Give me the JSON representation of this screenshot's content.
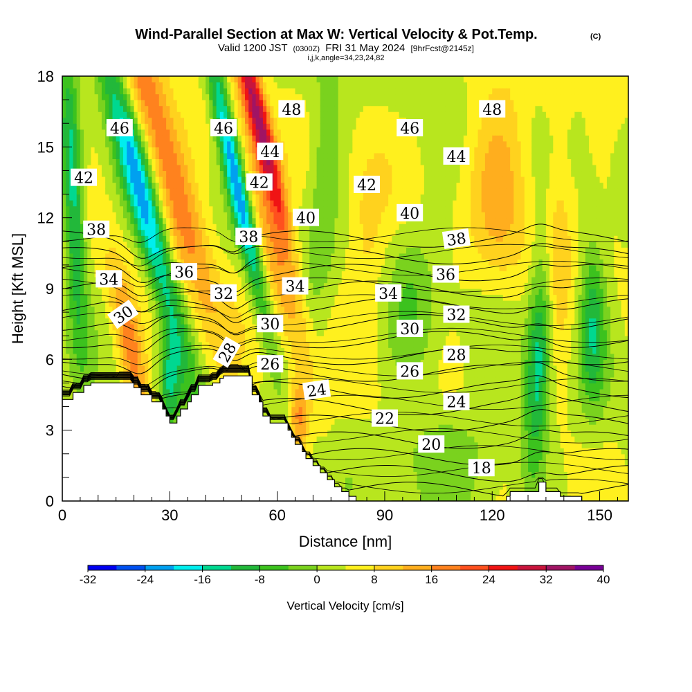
{
  "chart_data": {
    "type": "heatmap",
    "title": "Wind-Parallel Section at Max W: Vertical Velocity & Pot.Temp.",
    "title_suffix": "(C)",
    "subtitle_prefix": "Valid 1200 JST",
    "subtitle_utc": "(0300Z)",
    "subtitle_date": "FRI 31 May 2024",
    "subtitle_fcst": "[9hrFcst@2145z]",
    "subtitle2": "i,j,k,angle=34,23,24,82",
    "xlabel": "Distance [nm]",
    "ylabel": "Height [Kft MSL]",
    "xlim": [
      0,
      158
    ],
    "ylim": [
      0,
      18
    ],
    "x_ticks": [
      0,
      30,
      60,
      90,
      120,
      150
    ],
    "y_ticks": [
      0,
      3,
      6,
      9,
      12,
      15,
      18
    ],
    "colorbar": {
      "title": "Vertical Velocity [cm/s]",
      "min": -32,
      "max": 40,
      "step": 4,
      "tick_labels": [
        "-32",
        "-24",
        "-16",
        "-8",
        "0",
        "8",
        "16",
        "24",
        "32",
        "40"
      ],
      "colors": [
        "#0000f0",
        "#0050f0",
        "#00a0f0",
        "#00eeee",
        "#00d890",
        "#22b83a",
        "#3cc21e",
        "#7ad21e",
        "#b8e61e",
        "#fff01e",
        "#ffd21e",
        "#ffae1e",
        "#ff821e",
        "#ff501e",
        "#f01414",
        "#c8143c",
        "#a01464",
        "#780096"
      ]
    },
    "terrain_profile": {
      "x": [
        0,
        3,
        3,
        6,
        6,
        8,
        8,
        20,
        20,
        22,
        22,
        25,
        25,
        28,
        28,
        29,
        29,
        30,
        30,
        32,
        32,
        33,
        33,
        35,
        35,
        36,
        36,
        38,
        38,
        42,
        42,
        44,
        44,
        45,
        45,
        53,
        53,
        55,
        55,
        56,
        56,
        58,
        58,
        63,
        63,
        64,
        64,
        65,
        65,
        67,
        67,
        68,
        68,
        70,
        70,
        72,
        72,
        74,
        74,
        76,
        76,
        78,
        78,
        80,
        80,
        82,
        82,
        84,
        84,
        86,
        86,
        89,
        89,
        92,
        92,
        124,
        124,
        125,
        125,
        133,
        133,
        135,
        135,
        139,
        139,
        145,
        145,
        158
      ],
      "y": [
        4.3,
        4.3,
        4.6,
        4.6,
        4.9,
        4.9,
        5.0,
        5.0,
        4.8,
        4.8,
        4.5,
        4.5,
        4.2,
        4.2,
        3.9,
        3.9,
        3.6,
        3.6,
        3.3,
        3.3,
        3.6,
        3.6,
        3.9,
        3.9,
        4.2,
        4.2,
        4.5,
        4.5,
        4.9,
        4.9,
        5.0,
        5.0,
        5.2,
        5.2,
        5.3,
        5.3,
        4.5,
        4.5,
        4.2,
        4.2,
        3.6,
        3.6,
        3.3,
        3.3,
        3.0,
        3.0,
        2.7,
        2.7,
        2.4,
        2.4,
        2.1,
        2.1,
        1.8,
        1.8,
        1.5,
        1.5,
        1.2,
        1.2,
        0.9,
        0.9,
        0.6,
        0.6,
        0.4,
        0.4,
        0.2,
        0.2,
        0.0,
        0.0,
        -0.2,
        -0.2,
        -0.4,
        -0.4,
        -0.2,
        -0.2,
        0.0,
        0.0,
        0.2,
        0.2,
        0.4,
        0.4,
        0.8,
        0.8,
        0.4,
        0.4,
        0.2,
        0.2,
        0.0,
        0.0
      ]
    },
    "velocity_features": [
      {
        "label": "updraft-left-upper",
        "x": 29,
        "y": 14.5,
        "sx": 4,
        "sy": 5.5,
        "tilt": -0.3,
        "amp": 16
      },
      {
        "label": "updraft-left-lower",
        "x": 19,
        "y": 6.5,
        "sx": 2.5,
        "sy": 2.5,
        "tilt": -0.2,
        "amp": 14
      },
      {
        "label": "updraft-mid-upper",
        "x": 55,
        "y": 16,
        "sx": 2.2,
        "sy": 3.5,
        "tilt": -0.25,
        "amp": 30
      },
      {
        "label": "updraft-mid-lower",
        "x": 59,
        "y": 10.5,
        "sx": 3,
        "sy": 4,
        "tilt": -0.3,
        "amp": 12
      },
      {
        "label": "downdraft-left",
        "x": 22,
        "y": 13,
        "sx": 3,
        "sy": 5,
        "tilt": -0.28,
        "amp": -24
      },
      {
        "label": "downdraft-far-left",
        "x": 3,
        "y": 13,
        "sx": 2,
        "sy": 4.5,
        "tilt": -0.05,
        "amp": -18
      },
      {
        "label": "downdraft-mid",
        "x": 48,
        "y": 14,
        "sx": 2.0,
        "sy": 4.5,
        "tilt": -0.22,
        "amp": -26
      },
      {
        "label": "downdraft-lower",
        "x": 30,
        "y": 5,
        "sx": 2,
        "sy": 1.5,
        "tilt": 0,
        "amp": -14
      },
      {
        "label": "downdraft-right",
        "x": 133,
        "y": 6,
        "sx": 2.5,
        "sy": 3.5,
        "tilt": 0.05,
        "amp": -18
      },
      {
        "label": "downdraft-far-right",
        "x": 148,
        "y": 7.5,
        "sx": 2.5,
        "sy": 2.5,
        "tilt": 0,
        "amp": -14
      },
      {
        "label": "updraft-right-upper",
        "x": 122,
        "y": 14,
        "sx": 6,
        "sy": 3.5,
        "tilt": 0,
        "amp": 9
      },
      {
        "label": "updraft-right-mid",
        "x": 138,
        "y": 11,
        "sx": 3,
        "sy": 4,
        "tilt": 0,
        "amp": 8
      },
      {
        "label": "downdraft-center",
        "x": 73,
        "y": 14,
        "sx": 3,
        "sy": 5,
        "tilt": 0.05,
        "amp": -6
      },
      {
        "label": "downdraft-center-low",
        "x": 98,
        "y": 8,
        "sx": 5,
        "sy": 2.5,
        "tilt": 0,
        "amp": -6
      },
      {
        "label": "updraft-lowleft",
        "x": 66,
        "y": 3.5,
        "sx": 2,
        "sy": 1.2,
        "tilt": 0,
        "amp": 14
      },
      {
        "label": "updraft-center",
        "x": 85,
        "y": 11,
        "sx": 4,
        "sy": 3,
        "tilt": 0,
        "amp": 6
      },
      {
        "label": "downdraft-bottom",
        "x": 110,
        "y": 2,
        "sx": 12,
        "sy": 1.5,
        "tilt": 0,
        "amp": -6
      }
    ],
    "theta_levels": [
      18,
      20,
      22,
      24,
      26,
      28,
      30,
      32,
      34,
      36,
      38,
      40,
      42,
      44,
      46,
      48
    ],
    "contour_labels": [
      {
        "text": "46",
        "x": 16,
        "y": 15.8,
        "rot": 0
      },
      {
        "text": "42",
        "x": 6,
        "y": 13.7,
        "rot": 0
      },
      {
        "text": "38",
        "x": 9.5,
        "y": 11.5,
        "rot": 0
      },
      {
        "text": "34",
        "x": 13,
        "y": 9.4,
        "rot": 0
      },
      {
        "text": "30",
        "x": 17,
        "y": 7.9,
        "rot": -35
      },
      {
        "text": "36",
        "x": 34,
        "y": 9.7,
        "rot": 0
      },
      {
        "text": "46",
        "x": 45,
        "y": 15.8,
        "rot": 0
      },
      {
        "text": "44",
        "x": 58,
        "y": 14.8,
        "rot": 0
      },
      {
        "text": "42",
        "x": 55,
        "y": 13.5,
        "rot": 0
      },
      {
        "text": "48",
        "x": 64,
        "y": 16.6,
        "rot": 0
      },
      {
        "text": "40",
        "x": 68,
        "y": 12.0,
        "rot": 0
      },
      {
        "text": "38",
        "x": 52,
        "y": 11.2,
        "rot": 0
      },
      {
        "text": "32",
        "x": 45,
        "y": 8.8,
        "rot": 0
      },
      {
        "text": "34",
        "x": 65,
        "y": 9.1,
        "rot": 0
      },
      {
        "text": "30",
        "x": 58,
        "y": 7.5,
        "rot": 0
      },
      {
        "text": "28",
        "x": 46,
        "y": 6.3,
        "rot": -60
      },
      {
        "text": "26",
        "x": 58,
        "y": 5.8,
        "rot": 0
      },
      {
        "text": "24",
        "x": 71,
        "y": 4.7,
        "rot": -8
      },
      {
        "text": "42",
        "x": 85,
        "y": 13.4,
        "rot": 0
      },
      {
        "text": "46",
        "x": 97,
        "y": 15.8,
        "rot": 0
      },
      {
        "text": "40",
        "x": 97,
        "y": 12.2,
        "rot": 0
      },
      {
        "text": "34",
        "x": 91,
        "y": 8.8,
        "rot": 0
      },
      {
        "text": "30",
        "x": 97,
        "y": 7.3,
        "rot": 0
      },
      {
        "text": "26",
        "x": 97,
        "y": 5.5,
        "rot": 0
      },
      {
        "text": "22",
        "x": 90,
        "y": 3.5,
        "rot": 0
      },
      {
        "text": "20",
        "x": 103,
        "y": 2.4,
        "rot": 0
      },
      {
        "text": "18",
        "x": 117,
        "y": 1.4,
        "rot": 0
      },
      {
        "text": "24",
        "x": 110,
        "y": 4.2,
        "rot": 0
      },
      {
        "text": "28",
        "x": 110,
        "y": 6.2,
        "rot": 0
      },
      {
        "text": "32",
        "x": 110,
        "y": 7.9,
        "rot": 0
      },
      {
        "text": "36",
        "x": 107,
        "y": 9.6,
        "rot": 0
      },
      {
        "text": "38",
        "x": 110,
        "y": 11.1,
        "rot": -8
      },
      {
        "text": "44",
        "x": 110,
        "y": 14.6,
        "rot": 0
      },
      {
        "text": "48",
        "x": 120,
        "y": 16.6,
        "rot": 0
      }
    ]
  }
}
